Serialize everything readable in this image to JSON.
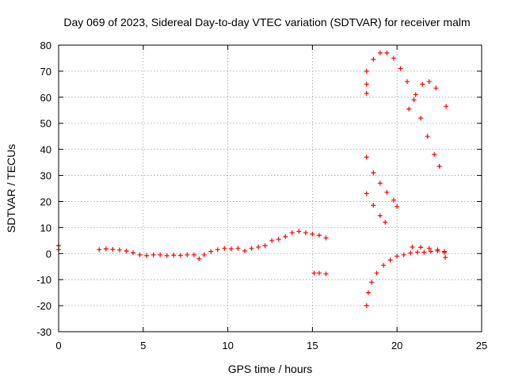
{
  "chart_data": {
    "type": "scatter",
    "title": "Day 069 of 2023, Sidereal Day-to-day VTEC variation (SDTVAR) for receiver malm",
    "xlabel": "GPS time / hours",
    "ylabel": "SDTVAR / TECUs",
    "xlim": [
      0,
      25
    ],
    "ylim": [
      -30,
      80
    ],
    "xticks": [
      0,
      5,
      10,
      15,
      20,
      25
    ],
    "yticks": [
      -30,
      -20,
      -10,
      0,
      10,
      20,
      30,
      40,
      50,
      60,
      70,
      80
    ],
    "grid": true,
    "marker": "plus",
    "color": "#ff0000",
    "series": [
      {
        "points": [
          [
            0.0,
            3.0
          ],
          [
            0.0,
            1.5
          ],
          [
            2.4,
            1.5
          ],
          [
            2.8,
            1.8
          ],
          [
            3.2,
            1.6
          ],
          [
            3.6,
            1.4
          ],
          [
            4.0,
            1.0
          ],
          [
            4.4,
            0.3
          ],
          [
            4.8,
            -0.5
          ],
          [
            5.2,
            -0.8
          ],
          [
            5.6,
            -0.5
          ],
          [
            6.0,
            -0.5
          ],
          [
            6.4,
            -0.8
          ],
          [
            6.8,
            -0.6
          ],
          [
            7.2,
            -0.7
          ],
          [
            7.6,
            -0.5
          ],
          [
            8.0,
            -0.5
          ],
          [
            8.3,
            -2.0
          ],
          [
            8.6,
            -0.5
          ],
          [
            9.0,
            0.8
          ],
          [
            9.4,
            1.5
          ],
          [
            9.8,
            2.0
          ],
          [
            10.2,
            1.8
          ],
          [
            10.6,
            2.0
          ],
          [
            11.0,
            1.0
          ],
          [
            11.4,
            2.0
          ],
          [
            11.8,
            2.5
          ],
          [
            12.2,
            3.0
          ],
          [
            12.6,
            5.0
          ],
          [
            13.0,
            5.5
          ],
          [
            13.4,
            6.5
          ],
          [
            13.8,
            8.0
          ],
          [
            14.2,
            8.5
          ],
          [
            14.6,
            8.0
          ],
          [
            15.0,
            7.5
          ],
          [
            15.4,
            7.0
          ],
          [
            15.8,
            6.0
          ],
          [
            15.1,
            -7.5
          ],
          [
            15.4,
            -7.5
          ],
          [
            15.8,
            -7.8
          ],
          [
            18.2,
            -20.0
          ],
          [
            18.3,
            -15.0
          ],
          [
            18.5,
            -11.0
          ],
          [
            18.8,
            -7.5
          ],
          [
            19.2,
            -4.5
          ],
          [
            19.6,
            -2.5
          ],
          [
            20.0,
            -1.0
          ],
          [
            20.4,
            -0.5
          ],
          [
            20.8,
            0.2
          ],
          [
            21.2,
            0.5
          ],
          [
            21.6,
            0.5
          ],
          [
            22.0,
            0.8
          ],
          [
            22.4,
            1.0
          ],
          [
            22.8,
            0.8
          ],
          [
            22.85,
            -1.5
          ],
          [
            20.9,
            2.5
          ],
          [
            21.4,
            2.4
          ],
          [
            21.9,
            2.0
          ],
          [
            22.4,
            1.5
          ],
          [
            22.8,
            0.5
          ],
          [
            18.2,
            65.0
          ],
          [
            18.2,
            61.5
          ],
          [
            18.2,
            70.0
          ],
          [
            18.6,
            74.5
          ],
          [
            19.0,
            77.0
          ],
          [
            19.4,
            77.0
          ],
          [
            19.8,
            75.0
          ],
          [
            20.2,
            71.0
          ],
          [
            20.6,
            66.0
          ],
          [
            21.0,
            59.0
          ],
          [
            21.4,
            52.0
          ],
          [
            21.8,
            45.0
          ],
          [
            22.2,
            38.0
          ],
          [
            22.5,
            33.5
          ],
          [
            20.7,
            55.5
          ],
          [
            21.1,
            61.0
          ],
          [
            21.5,
            65.0
          ],
          [
            21.9,
            66.0
          ],
          [
            22.3,
            63.5
          ],
          [
            22.9,
            56.5
          ],
          [
            18.2,
            37.0
          ],
          [
            18.6,
            31.0
          ],
          [
            19.0,
            27.0
          ],
          [
            19.4,
            23.5
          ],
          [
            19.8,
            20.5
          ],
          [
            20.0,
            18.0
          ],
          [
            18.2,
            23.0
          ],
          [
            18.6,
            18.5
          ],
          [
            19.0,
            14.5
          ],
          [
            19.3,
            12.0
          ]
        ]
      }
    ]
  }
}
